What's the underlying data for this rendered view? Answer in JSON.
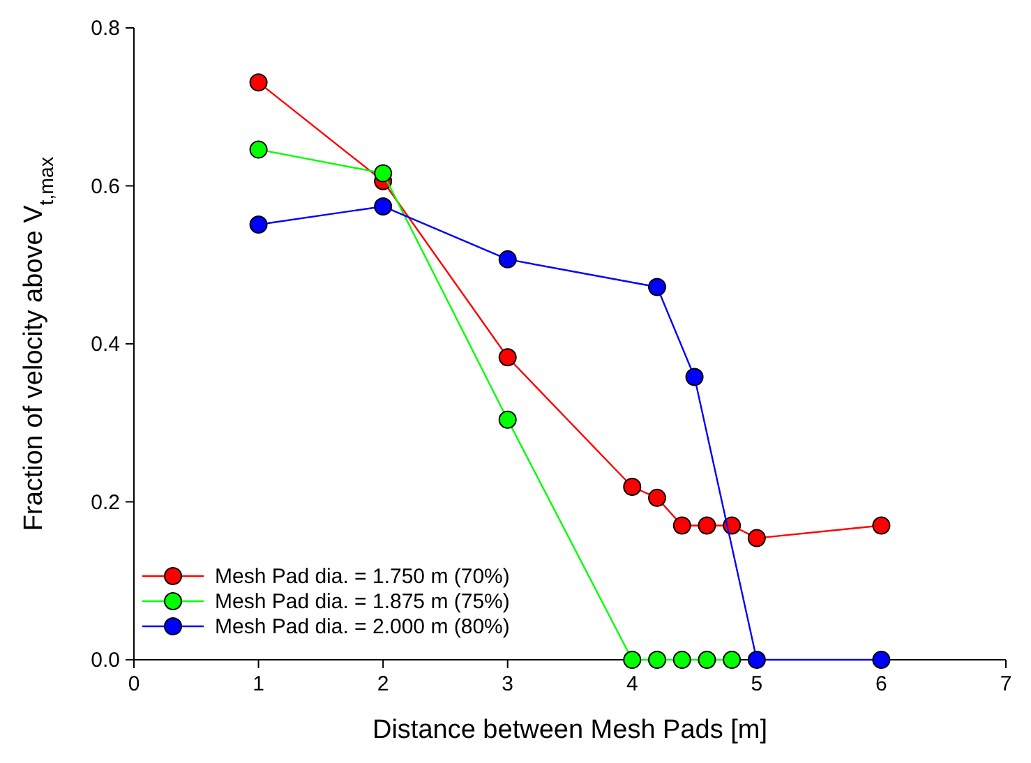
{
  "chart_data": {
    "type": "line",
    "xlabel": "Distance between Mesh Pads [m]",
    "ylabel": "Fraction of velocity above V$_{t,max}$",
    "xlim": [
      0,
      7
    ],
    "xticks": [
      0,
      1,
      2,
      3,
      4,
      5,
      6,
      7
    ],
    "ylim": [
      0,
      0.8
    ],
    "yticks": [
      {
        "value": 0,
        "label": "0.0"
      },
      {
        "value": 0.2,
        "label": "0.2"
      },
      {
        "value": 0.4,
        "label": "0.4"
      },
      {
        "value": 0.6,
        "label": "0.6"
      },
      {
        "value": 0.8,
        "label": "0.8"
      }
    ],
    "grid": false,
    "legend": "bottom left",
    "marker": "circle",
    "line_style": "solid",
    "series": [
      {
        "name": "Mesh Pad dia. = 1.750 m (70%)",
        "color": "#ff0000",
        "x": [
          1,
          2,
          3,
          4,
          4.2,
          4.4,
          4.6,
          4.8,
          5,
          6
        ],
        "values": [
          0.731,
          0.606,
          0.383,
          0.219,
          0.205,
          0.17,
          0.17,
          0.17,
          0.154,
          0.17
        ]
      },
      {
        "name": "Mesh Pad dia. = 1.875 m (75%)",
        "color": "#00ff00",
        "x": [
          1,
          2,
          3,
          4,
          4.2,
          4.4,
          4.6,
          4.8
        ],
        "values": [
          0.646,
          0.616,
          0.304,
          0,
          0,
          0,
          0,
          0
        ]
      },
      {
        "name": "Mesh Pad dia. = 2.000 m (80%)",
        "color": "#0000ff",
        "x": [
          1,
          2,
          3,
          4.2,
          4.5,
          5,
          6
        ],
        "values": [
          0.551,
          0.574,
          0.507,
          0.472,
          0.358,
          0,
          0
        ]
      }
    ]
  }
}
